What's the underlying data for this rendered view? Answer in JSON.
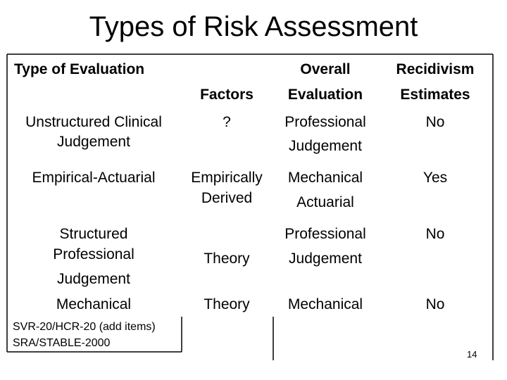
{
  "title": "Types of Risk Assessment",
  "table": {
    "header": [
      [
        "Type of Evaluation"
      ],
      [
        "Factors"
      ],
      [
        "Overall",
        "Evaluation"
      ],
      [
        "Recidivism",
        "Estimates"
      ]
    ],
    "rows": [
      [
        [
          "Unstructured Clinical",
          "Judgement"
        ],
        [
          "?"
        ],
        [
          "Professional",
          "Judgement"
        ],
        [
          "No"
        ]
      ],
      [
        [
          "Empirical-Actuarial"
        ],
        [
          "Empirically",
          "Derived"
        ],
        [
          "Mechanical",
          "Actuarial"
        ],
        [
          "Yes"
        ]
      ],
      [
        [
          "Structured",
          "Professional",
          "Judgement"
        ],
        [
          "Theory"
        ],
        [
          "Professional",
          "Judgement"
        ],
        [
          "No"
        ]
      ],
      [
        [
          "Mechanical"
        ],
        [
          "Theory"
        ],
        [
          "Mechanical"
        ],
        [
          "No"
        ]
      ]
    ],
    "notes": [
      "SVR-20/HCR-20 (add items)",
      "SRA/STABLE-2000"
    ]
  },
  "page_number": "14"
}
